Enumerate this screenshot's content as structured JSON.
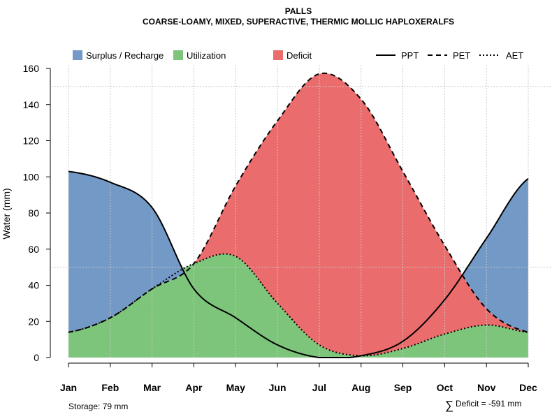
{
  "chart_data": {
    "type": "area",
    "title": "PALLS",
    "subtitle": "COARSE-LOAMY, MIXED, SUPERACTIVE, THERMIC MOLLIC HAPLOXERALFS",
    "ylabel": "Water (mm)",
    "xlabel": "",
    "ylim": [
      0,
      160
    ],
    "yticks": [
      "0",
      "20",
      "40",
      "60",
      "80",
      "100",
      "120",
      "140",
      "160"
    ],
    "categories": [
      "Jan",
      "Feb",
      "Mar",
      "Apr",
      "May",
      "Jun",
      "Jul",
      "Aug",
      "Sep",
      "Oct",
      "Nov",
      "Dec"
    ],
    "grid": true,
    "legend_position": "top",
    "legend": {
      "surplus": "Surplus / Recharge",
      "utilization": "Utilization",
      "deficit": "Deficit",
      "ppt": "PPT",
      "pet": "PET",
      "aet": "AET"
    },
    "series": [
      {
        "name": "PPT",
        "style": "solid",
        "values": [
          103,
          97,
          83,
          38,
          22,
          7,
          0,
          1,
          9,
          32,
          66,
          99
        ]
      },
      {
        "name": "PET",
        "style": "dashed",
        "values": [
          14,
          22,
          38,
          52,
          95,
          131,
          157,
          143,
          103,
          62,
          27,
          14
        ]
      },
      {
        "name": "AET",
        "style": "dotted",
        "values": [
          14,
          22,
          38,
          52,
          56,
          30,
          7,
          1,
          5,
          13,
          18,
          14
        ]
      }
    ],
    "colors": {
      "surplus": "#7399c6",
      "utilization": "#7dc57a",
      "deficit": "#eb6c6c",
      "line": "#000000",
      "grid": "#c8c8c8"
    },
    "annotations": {
      "storage": "Storage: 79 mm",
      "deficit_symbol": "∑",
      "deficit_total": "Deficit = -591 mm"
    }
  }
}
